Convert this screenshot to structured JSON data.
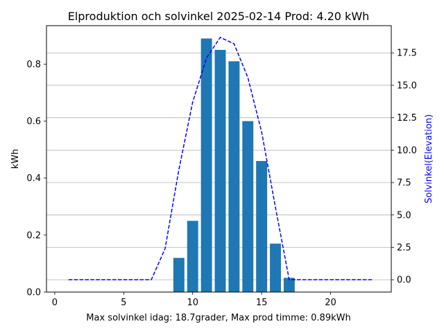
{
  "chart_data": {
    "type": "bar",
    "title": "Elproduktion och solvinkel 2025-02-14 Prod: 4.20 kWh",
    "xlabel": "Max solvinkel idag: 18.7grader, Max prod timme: 0.89kWh",
    "ylabel": "kWh",
    "y2label": "Solvinkel(Elevation)",
    "xlim": [
      -0.6,
      24.4
    ],
    "ylim": [
      0,
      0.935
    ],
    "y2lim": [
      -0.95,
      19.6
    ],
    "xticks": [
      0,
      5,
      10,
      15,
      20
    ],
    "yticks": [
      0.0,
      0.2,
      0.4,
      0.6,
      0.8
    ],
    "y2ticks": [
      0.0,
      2.5,
      5.0,
      7.5,
      10.0,
      12.5,
      15.0,
      17.5
    ],
    "grid": "right-axis horizontal",
    "series": [
      {
        "type": "bar",
        "axis": "left",
        "color": "#1f77b4",
        "x": [
          9,
          10,
          11,
          12,
          13,
          14,
          15,
          16,
          17
        ],
        "values": [
          0.12,
          0.25,
          0.89,
          0.85,
          0.81,
          0.6,
          0.46,
          0.17,
          0.05
        ]
      },
      {
        "type": "line",
        "axis": "right",
        "style": "dashed",
        "color": "#0000ff",
        "x": [
          1,
          2,
          3,
          4,
          5,
          6,
          7,
          8,
          9,
          10,
          11,
          12,
          13,
          14,
          15,
          16,
          17,
          18,
          19,
          20,
          21,
          22,
          23
        ],
        "values": [
          0,
          0,
          0,
          0,
          0,
          0,
          0,
          2.4,
          8.5,
          13.7,
          17.1,
          18.7,
          18.2,
          15.6,
          11.4,
          5.6,
          0,
          0,
          0,
          0,
          0,
          0,
          0
        ]
      }
    ]
  }
}
